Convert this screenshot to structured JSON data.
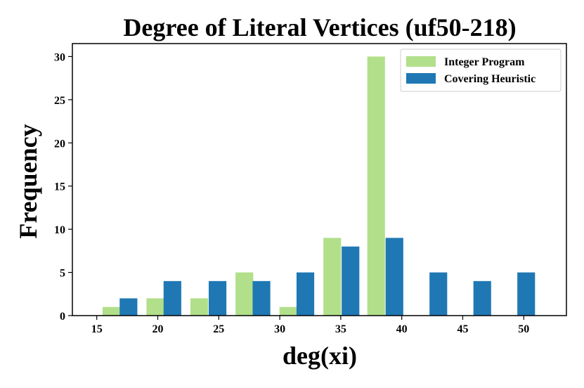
{
  "chart_data": {
    "type": "bar",
    "title": "Degree of Literal Vertices (uf50-218)",
    "xlabel": "deg(xi)",
    "ylabel": "Frequency",
    "xlim": [
      13,
      53.5
    ],
    "ylim": [
      0,
      31.5
    ],
    "xticks": [
      15,
      20,
      25,
      30,
      35,
      40,
      45,
      50
    ],
    "yticks": [
      0,
      5,
      10,
      15,
      20,
      25,
      30
    ],
    "grid": false,
    "legend_position": "top-right",
    "bar_width": 1.45,
    "series": [
      {
        "name": "Integer Program",
        "color": "#b2df8a",
        "x": [
          16.2,
          19.8,
          23.4,
          27.1,
          30.7,
          34.3,
          37.9
        ],
        "values": [
          1,
          2,
          2,
          5,
          1,
          9,
          30
        ]
      },
      {
        "name": "Covering Heuristic",
        "color": "#1f78b4",
        "x": [
          17.6,
          21.2,
          24.9,
          28.5,
          32.1,
          35.8,
          39.4,
          43.0,
          46.6,
          50.2
        ],
        "values": [
          2,
          4,
          4,
          4,
          5,
          8,
          9,
          5,
          4,
          5
        ]
      }
    ]
  }
}
